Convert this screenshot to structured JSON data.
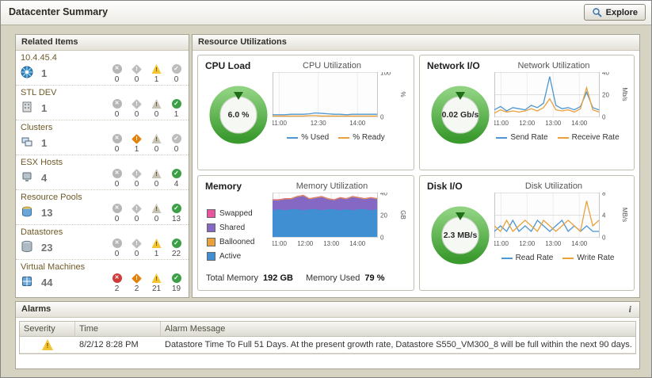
{
  "header": {
    "title": "Datacenter Summary",
    "explore_label": "Explore"
  },
  "related_items": {
    "title": "Related Items",
    "rows": [
      {
        "label": "10.4.45.4",
        "icon": "vcenter-icon",
        "count": "1",
        "statuses": [
          "0",
          "0",
          "1",
          "0"
        ]
      },
      {
        "label": "STL DEV",
        "icon": "datacenter-icon",
        "count": "1",
        "statuses": [
          "0",
          "0",
          "0",
          "1"
        ]
      },
      {
        "label": "Clusters",
        "icon": "cluster-icon",
        "count": "1",
        "statuses": [
          "0",
          "1",
          "0",
          "0"
        ]
      },
      {
        "label": "ESX Hosts",
        "icon": "esx-host-icon",
        "count": "4",
        "statuses": [
          "0",
          "0",
          "0",
          "4"
        ]
      },
      {
        "label": "Resource Pools",
        "icon": "resource-pool-icon",
        "count": "13",
        "statuses": [
          "0",
          "0",
          "0",
          "13"
        ]
      },
      {
        "label": "Datastores",
        "icon": "datastore-icon",
        "count": "23",
        "statuses": [
          "0",
          "0",
          "1",
          "22"
        ]
      },
      {
        "label": "Virtual Machines",
        "icon": "vm-icon",
        "count": "44",
        "statuses": [
          "2",
          "2",
          "21",
          "19"
        ]
      }
    ]
  },
  "resource_utilizations": {
    "title": "Resource Utilizations",
    "cpu": {
      "title": "CPU Load",
      "gauge_value": "6.0 %"
    },
    "network": {
      "title": "Network I/O",
      "gauge_value": "0.02 Gb/s"
    },
    "memory": {
      "title": "Memory",
      "total_label": "Total Memory",
      "total_value": "192 GB",
      "used_label": "Memory Used",
      "used_value": "79 %"
    },
    "disk": {
      "title": "Disk I/O",
      "gauge_value": "2.3 MB/s"
    }
  },
  "charts": {
    "cpu": {
      "id": "cpu",
      "title": "CPU Utilization",
      "type": "line",
      "ymax": 100,
      "unit": "%",
      "yticks": [
        0,
        100
      ],
      "xticks": [
        {
          "label": "11:00",
          "f": 0.0625
        },
        {
          "label": "12:30",
          "f": 0.4375
        },
        {
          "label": "14:00",
          "f": 0.8125
        }
      ],
      "series": [
        {
          "name": "% Used",
          "color": "#4d96d2",
          "values": [
            4,
            4,
            4,
            5,
            5,
            5,
            6,
            8,
            7,
            6,
            5,
            5,
            4,
            5,
            5,
            5,
            5,
            5
          ]
        },
        {
          "name": "% Ready",
          "color": "#e9a13c",
          "values": [
            1,
            1,
            1,
            1,
            1,
            1,
            2,
            2,
            1,
            1,
            1,
            1,
            1,
            1,
            1,
            1,
            1,
            1
          ]
        }
      ]
    },
    "network": {
      "id": "network",
      "title": "Network Utilization",
      "type": "line",
      "ymax": 40,
      "unit": "Mb/s",
      "yticks": [
        0,
        20,
        40
      ],
      "xticks": [
        {
          "label": "11:00",
          "f": 0.0625
        },
        {
          "label": "12:00",
          "f": 0.3125
        },
        {
          "label": "13:00",
          "f": 0.5625
        },
        {
          "label": "14:00",
          "f": 0.8125
        }
      ],
      "series": [
        {
          "name": "Send Rate",
          "color": "#4d96d2",
          "values": [
            6,
            9,
            5,
            8,
            7,
            6,
            10,
            8,
            12,
            36,
            10,
            7,
            8,
            6,
            9,
            22,
            8,
            6
          ]
        },
        {
          "name": "Receive Rate",
          "color": "#e9a13c",
          "values": [
            3,
            6,
            4,
            5,
            4,
            5,
            7,
            5,
            8,
            16,
            6,
            5,
            6,
            4,
            7,
            26,
            6,
            4
          ]
        }
      ]
    },
    "memory": {
      "id": "memory",
      "title": "Memory Utilization",
      "type": "area",
      "ymax": 40,
      "unit": "GB",
      "yticks": [
        0,
        20,
        40
      ],
      "xticks": [
        {
          "label": "11:00",
          "f": 0.0625
        },
        {
          "label": "12:00",
          "f": 0.3125
        },
        {
          "label": "13:00",
          "f": 0.5625
        },
        {
          "label": "14:00",
          "f": 0.8125
        }
      ],
      "series": [
        {
          "name": "Active",
          "color": "#3f8fd2",
          "values": [
            24,
            25,
            24,
            25,
            25,
            24,
            25,
            25,
            24,
            25,
            25,
            24,
            25,
            24,
            25,
            25,
            24,
            25
          ]
        },
        {
          "name": "Shared",
          "color": "#8468c4",
          "values": [
            9,
            8,
            10,
            9,
            11,
            13,
            9,
            10,
            12,
            9,
            8,
            11,
            9,
            12,
            10,
            9,
            11,
            9
          ]
        },
        {
          "name": "Ballooned",
          "color": "#e9a13c",
          "values": [
            0.6,
            0.6,
            0.6,
            0.6,
            0.6,
            0.6,
            0.6,
            0.6,
            0.6,
            0.6,
            0.6,
            0.6,
            0.6,
            0.6,
            0.6,
            0.6,
            0.6,
            0.6
          ]
        },
        {
          "name": "Swapped",
          "color": "#e8559e",
          "values": [
            0.4,
            0.4,
            0.4,
            0.4,
            0.4,
            0.4,
            0.4,
            0.4,
            0.4,
            0.4,
            0.4,
            0.4,
            0.4,
            0.4,
            0.4,
            0.4,
            0.4,
            0.4
          ]
        }
      ]
    },
    "disk": {
      "id": "disk",
      "title": "Disk Utilization",
      "type": "line",
      "ymax": 8,
      "unit": "MB/s",
      "yticks": [
        0,
        4,
        8
      ],
      "xticks": [
        {
          "label": "11:00",
          "f": 0.0625
        },
        {
          "label": "12:00",
          "f": 0.3125
        },
        {
          "label": "13:00",
          "f": 0.5625
        },
        {
          "label": "14:00",
          "f": 0.8125
        }
      ],
      "series": [
        {
          "name": "Read Rate",
          "color": "#4d96d2",
          "values": [
            1,
            2,
            1,
            3,
            1,
            2,
            1,
            3,
            2,
            1,
            2,
            3,
            1,
            2,
            1,
            2,
            1,
            1
          ]
        },
        {
          "name": "Write Rate",
          "color": "#e9a13c",
          "values": [
            2,
            1,
            3,
            1,
            2,
            3,
            2,
            1,
            3,
            2,
            1,
            2,
            3,
            2,
            1,
            6.5,
            2,
            3
          ]
        }
      ]
    }
  },
  "alarms": {
    "title": "Alarms",
    "info_icon": "i",
    "columns": [
      "Severity",
      "Time",
      "Alarm Message"
    ],
    "rows": [
      {
        "severity": "warning",
        "time": "8/2/12 8:28 PM",
        "message": "Datastore Time To Full 51 Days. At the present growth rate, Datastore S550_VM300_8 will be full within the next 90 days."
      }
    ]
  }
}
